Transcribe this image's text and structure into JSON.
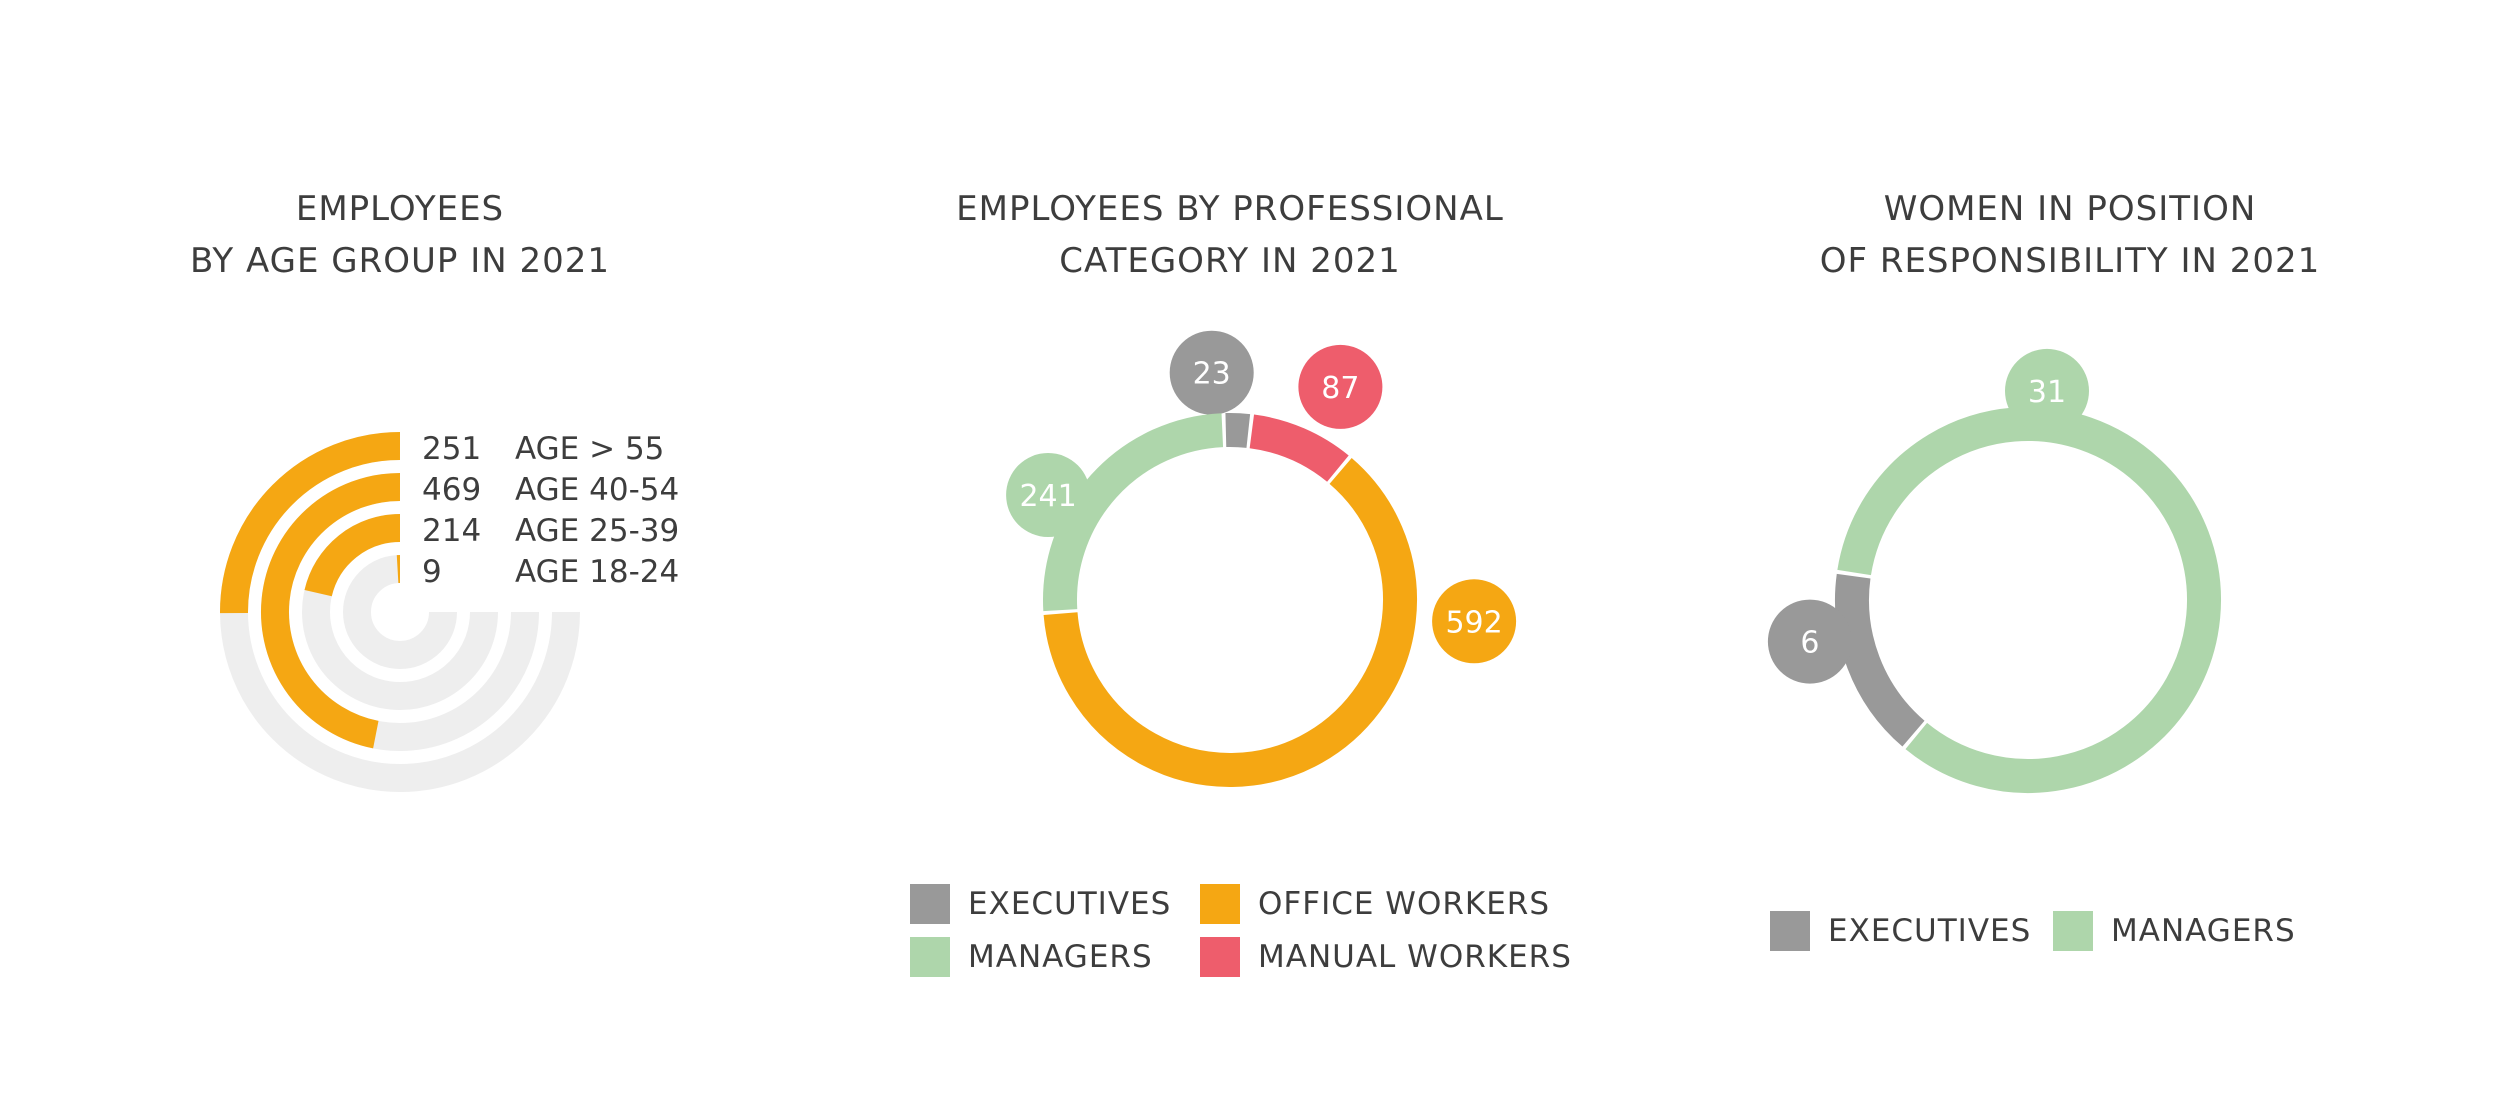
{
  "colors": {
    "executives": "#999999",
    "managers": "#aed6ab",
    "office_workers": "#f5a713",
    "manual_workers": "#ee5d6c",
    "track": "#eeeeee",
    "value_text": "#ffffff",
    "label_text": "#3d3d3d"
  },
  "chart_data": [
    {
      "type": "radial-bar",
      "title_lines": [
        "EMPLOYEES",
        "BY AGE GROUP IN 2021"
      ],
      "categories": [
        "AGE > 55",
        "AGE 40-54",
        "AGE 25-39",
        "AGE 18-24"
      ],
      "values": [
        251,
        469,
        214,
        9
      ],
      "value_labels": [
        "251",
        "469",
        "214",
        "9"
      ],
      "max": 750,
      "max_sweep_degrees": 270
    },
    {
      "type": "pie",
      "style": "donut",
      "title_lines": [
        "EMPLOYEES BY PROFESSIONAL",
        "CATEGORY IN 2021"
      ],
      "slices": [
        {
          "key": "executives",
          "label": "EXECUTIVES",
          "value": 23,
          "value_label": "23"
        },
        {
          "key": "manual_workers",
          "label": "MANUAL WORKERS",
          "value": 87,
          "value_label": "87"
        },
        {
          "key": "office_workers",
          "label": "OFFICE WORKERS",
          "value": 592,
          "value_label": "592"
        },
        {
          "key": "managers",
          "label": "MANAGERS",
          "value": 241,
          "value_label": "241"
        }
      ],
      "legend": [
        {
          "key": "executives",
          "label": "EXECUTIVES"
        },
        {
          "key": "office_workers",
          "label": "OFFICE WORKERS"
        },
        {
          "key": "managers",
          "label": "MANAGERS"
        },
        {
          "key": "manual_workers",
          "label": "MANUAL WORKERS"
        }
      ],
      "legend_placement": "bottom"
    },
    {
      "type": "pie",
      "style": "donut",
      "title_lines": [
        "WOMEN IN POSITION",
        "OF RESPONSIBILITY IN 2021"
      ],
      "slices": [
        {
          "key": "executives",
          "label": "EXECUTIVES",
          "value": 6,
          "value_label": "6"
        },
        {
          "key": "managers",
          "label": "MANAGERS",
          "value": 31,
          "value_label": "31"
        }
      ],
      "legend": [
        {
          "key": "executives",
          "label": "EXECUTIVES"
        },
        {
          "key": "managers",
          "label": "MANAGERS"
        }
      ],
      "legend_placement": "bottom"
    }
  ]
}
